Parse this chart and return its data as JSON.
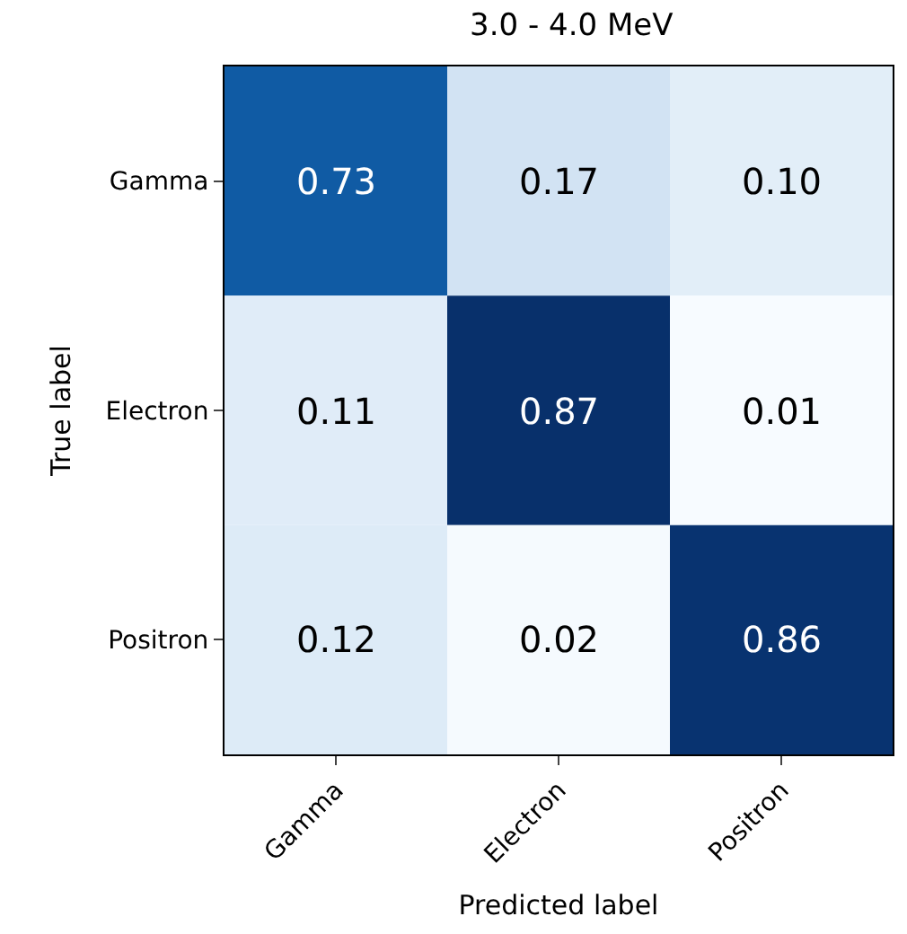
{
  "chart_data": {
    "type": "heatmap",
    "title": "3.0 - 4.0 MeV",
    "xlabel": "Predicted label",
    "ylabel": "True label",
    "categories": [
      "Gamma",
      "Electron",
      "Positron"
    ],
    "y_categories": [
      "Gamma",
      "Electron",
      "Positron"
    ],
    "cells": [
      [
        0.73,
        0.17,
        0.1
      ],
      [
        0.11,
        0.87,
        0.01
      ],
      [
        0.12,
        0.02,
        0.86
      ]
    ],
    "cell_labels": [
      [
        "0.73",
        "0.17",
        "0.10"
      ],
      [
        "0.11",
        "0.87",
        "0.01"
      ],
      [
        "0.12",
        "0.02",
        "0.86"
      ]
    ]
  }
}
